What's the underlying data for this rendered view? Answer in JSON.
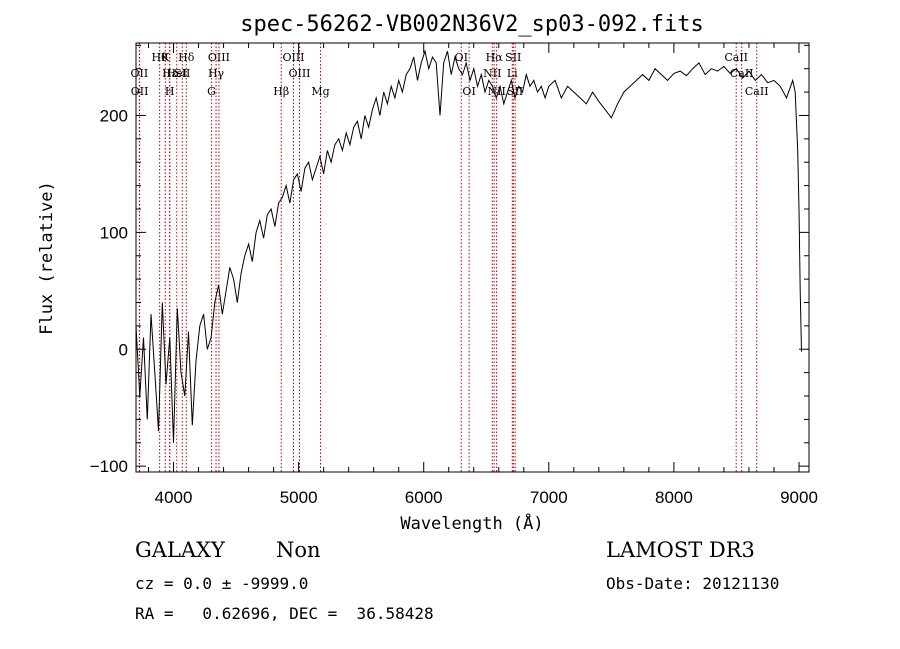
{
  "chart_data": {
    "type": "line",
    "title": "spec-56262-VB002N36V2_sp03-092.fits",
    "xlabel": "Wavelength (Å)",
    "ylabel": "Flux (relative)",
    "xlim": [
      3700,
      9080
    ],
    "ylim": [
      -105,
      262
    ],
    "xticks": [
      4000,
      5000,
      6000,
      7000,
      8000,
      9000
    ],
    "yticks": [
      -100,
      0,
      100,
      200
    ],
    "grid": false,
    "line_color": "#000000",
    "marker_color": "#c00000",
    "spectral_lines": [
      {
        "wavelength": 3727,
        "label": "OII",
        "row": 2
      },
      {
        "wavelength": 3729,
        "label": "OII",
        "row": 3
      },
      {
        "wavelength": 3889,
        "label": "Hθ",
        "row": 1
      },
      {
        "wavelength": 3970,
        "label": "Hε",
        "row": 2
      },
      {
        "wavelength": 4026,
        "label": "HeI",
        "row": 2
      },
      {
        "wavelength": 3934,
        "label": "K",
        "row": 1
      },
      {
        "wavelength": 3969,
        "label": "H",
        "row": 3
      },
      {
        "wavelength": 4102,
        "label": "Hδ",
        "row": 1
      },
      {
        "wavelength": 4070,
        "label": "SII",
        "row": 2
      },
      {
        "wavelength": 4340,
        "label": "Hγ",
        "row": 2
      },
      {
        "wavelength": 4304,
        "label": "G",
        "row": 3
      },
      {
        "wavelength": 4363,
        "label": "OIII",
        "row": 1
      },
      {
        "wavelength": 4861,
        "label": "Hβ",
        "row": 3
      },
      {
        "wavelength": 4959,
        "label": "OIII",
        "row": 1
      },
      {
        "wavelength": 5007,
        "label": "OIII",
        "row": 2
      },
      {
        "wavelength": 5175,
        "label": "Mg",
        "row": 3
      },
      {
        "wavelength": 6300,
        "label": "OI",
        "row": 1
      },
      {
        "wavelength": 6363,
        "label": "OI",
        "row": 3
      },
      {
        "wavelength": 6563,
        "label": "Hα",
        "row": 1
      },
      {
        "wavelength": 6548,
        "label": "NII",
        "row": 2
      },
      {
        "wavelength": 6583,
        "label": "NII",
        "row": 3
      },
      {
        "wavelength": 6716,
        "label": "SII",
        "row": 1
      },
      {
        "wavelength": 6731,
        "label": "SII",
        "row": 3
      },
      {
        "wavelength": 6708,
        "label": "Li",
        "row": 2
      },
      {
        "wavelength": 8498,
        "label": "CaII",
        "row": 1
      },
      {
        "wavelength": 8542,
        "label": "CaII",
        "row": 2
      },
      {
        "wavelength": 8662,
        "label": "CaII",
        "row": 3
      }
    ],
    "series": [
      {
        "x": [
          3700,
          3730,
          3760,
          3790,
          3820,
          3850,
          3880,
          3910,
          3940,
          3970,
          4000,
          4030,
          4060,
          4090,
          4120,
          4150,
          4180,
          4210,
          4240,
          4270,
          4300,
          4330,
          4360,
          4390,
          4420,
          4450,
          4480,
          4510,
          4540,
          4570,
          4600,
          4630,
          4660,
          4690,
          4720,
          4750,
          4780,
          4810,
          4840,
          4870,
          4900,
          4930,
          4960,
          4990,
          5020,
          5050,
          5080,
          5110,
          5140,
          5170,
          5200,
          5230,
          5260,
          5290,
          5320,
          5350,
          5380,
          5410,
          5440,
          5470,
          5500,
          5530,
          5560,
          5590,
          5620,
          5650,
          5680,
          5710,
          5740,
          5770,
          5800,
          5830,
          5860,
          5890,
          5920,
          5950,
          5980,
          6010,
          6040,
          6070,
          6100,
          6130,
          6160,
          6190,
          6220,
          6250,
          6280,
          6310,
          6340,
          6370,
          6400,
          6430,
          6460,
          6490,
          6520,
          6550,
          6580,
          6610,
          6640,
          6670,
          6700,
          6730,
          6760,
          6790,
          6820,
          6850,
          6880,
          6910,
          6940,
          6970,
          7000,
          7050,
          7100,
          7150,
          7200,
          7250,
          7300,
          7350,
          7400,
          7450,
          7500,
          7550,
          7600,
          7650,
          7700,
          7750,
          7800,
          7850,
          7900,
          7950,
          8000,
          8050,
          8100,
          8150,
          8200,
          8250,
          8300,
          8350,
          8400,
          8450,
          8500,
          8550,
          8600,
          8650,
          8700,
          8750,
          8800,
          8850,
          8900,
          8950,
          8970,
          8990,
          9000,
          9010,
          9020
        ],
        "y": [
          20,
          -40,
          10,
          -60,
          30,
          -20,
          -70,
          40,
          -30,
          10,
          -80,
          35,
          -20,
          -40,
          15,
          -65,
          -10,
          20,
          30,
          0,
          10,
          40,
          55,
          30,
          50,
          70,
          60,
          40,
          65,
          80,
          90,
          75,
          100,
          110,
          95,
          115,
          120,
          105,
          125,
          130,
          140,
          125,
          145,
          150,
          135,
          155,
          160,
          145,
          155,
          165,
          150,
          170,
          160,
          175,
          180,
          170,
          185,
          175,
          190,
          195,
          180,
          200,
          190,
          205,
          215,
          200,
          220,
          210,
          225,
          215,
          230,
          220,
          235,
          240,
          250,
          230,
          245,
          255,
          240,
          250,
          245,
          200,
          245,
          255,
          235,
          250,
          240,
          235,
          245,
          230,
          240,
          225,
          235,
          220,
          230,
          225,
          215,
          225,
          210,
          220,
          230,
          215,
          225,
          220,
          235,
          225,
          230,
          220,
          225,
          215,
          225,
          230,
          215,
          225,
          220,
          215,
          210,
          220,
          212,
          205,
          198,
          210,
          220,
          225,
          230,
          235,
          230,
          240,
          235,
          230,
          236,
          238,
          234,
          240,
          245,
          235,
          240,
          238,
          242,
          236,
          240,
          232,
          238,
          230,
          235,
          228,
          230,
          225,
          215,
          230,
          220,
          170,
          120,
          50,
          -2
        ]
      }
    ]
  },
  "info": {
    "class_label": "GALAXY",
    "subclass": "Non",
    "survey": "LAMOST DR3",
    "cz": "cz = 0.0 ± -9999.0",
    "obs_date": "Obs-Date: 20121130",
    "coords": "RA =   0.62696, DEC =  36.58428"
  }
}
